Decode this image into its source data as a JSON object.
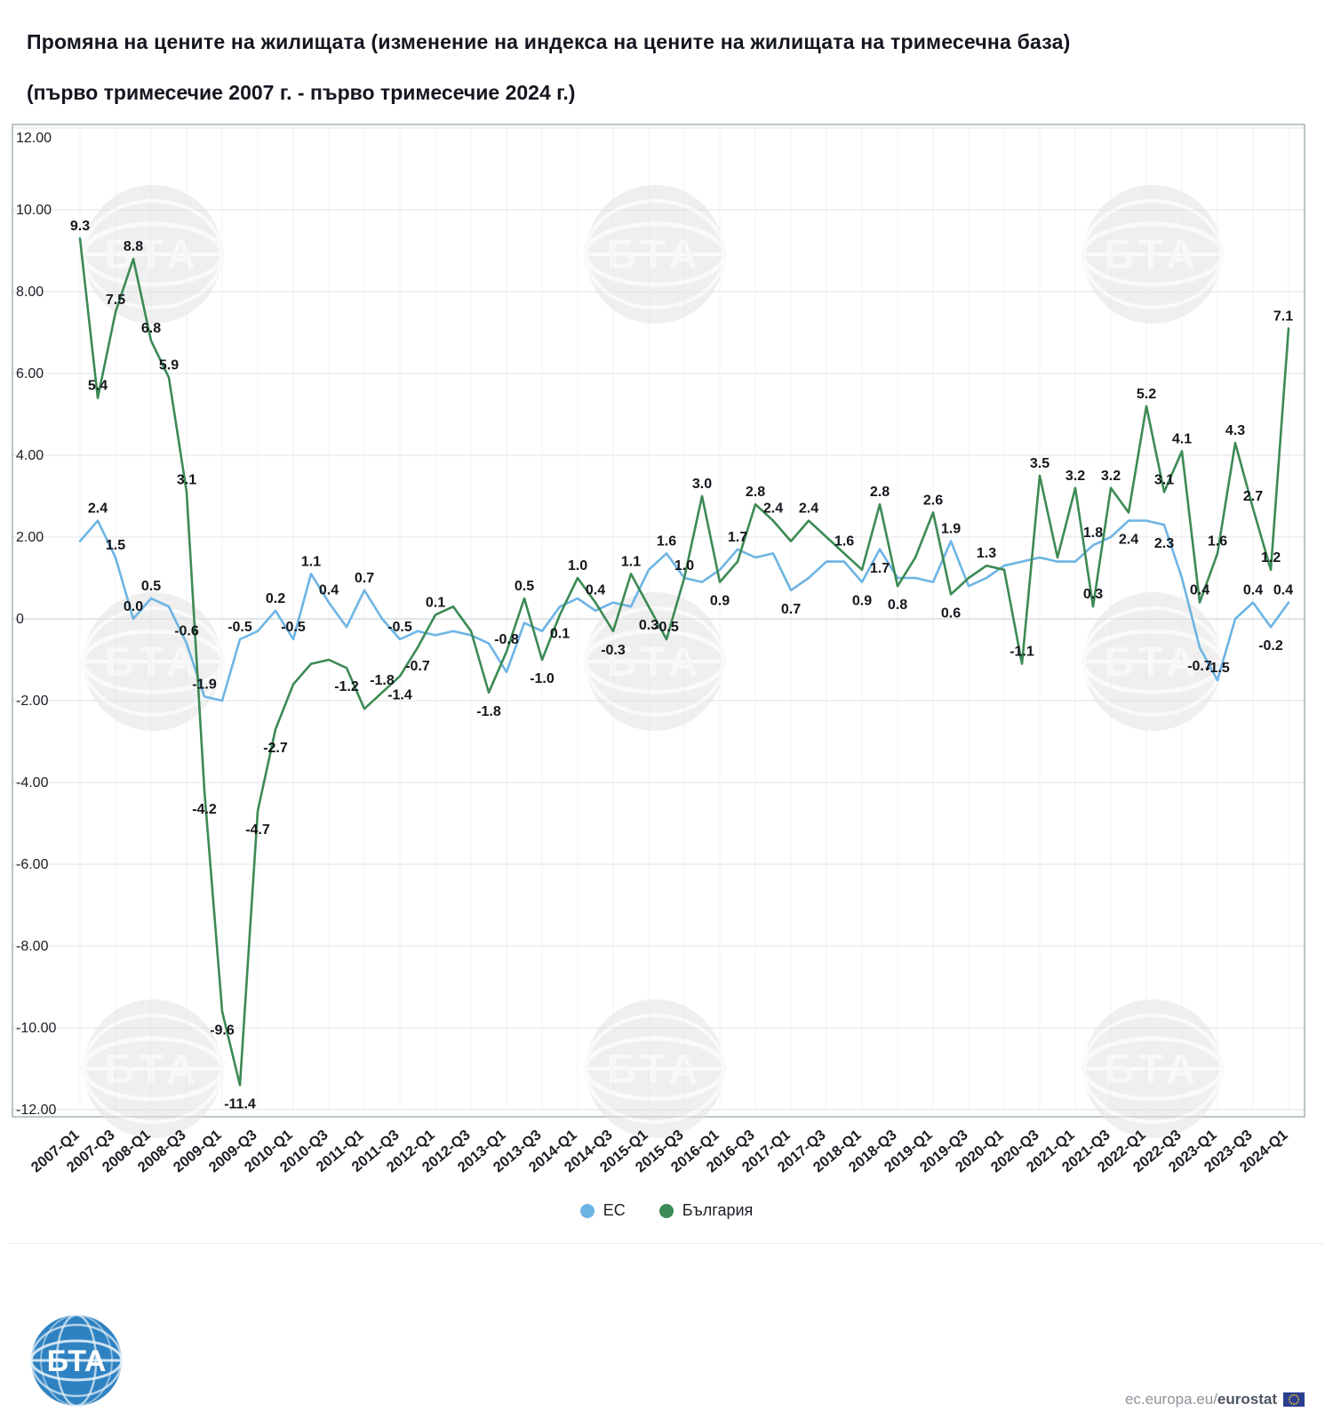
{
  "page": {
    "title": "Промяна на цените на жилищата (изменение на индекса на цените на жилищата на тримесечна база)",
    "subtitle": "(първо тримесечие 2007 г. -  първо тримесечие 2024 г.)"
  },
  "legend": [
    {
      "label": "ЕС",
      "color": "#6db4e4"
    },
    {
      "label": "България",
      "color": "#3c8a55"
    }
  ],
  "footer": {
    "logo_text": "БТА",
    "credit_prefix": "ec.europa.eu/",
    "credit_bold": "eurostat"
  },
  "chart_data": {
    "type": "line",
    "n_points": 69,
    "points_per_tick": 2,
    "x_tick_labels": [
      "2007-Q1",
      "2007-Q3",
      "2008-Q1",
      "2008-Q3",
      "2009-Q1",
      "2009-Q3",
      "2010-Q1",
      "2010-Q3",
      "2011-Q1",
      "2011-Q3",
      "2012-Q1",
      "2012-Q3",
      "2013-Q1",
      "2013-Q3",
      "2014-Q1",
      "2014-Q3",
      "2015-Q1",
      "2015-Q3",
      "2016-Q1",
      "2016-Q3",
      "2017-Q1",
      "2017-Q3",
      "2018-Q1",
      "2018-Q3",
      "2019-Q1",
      "2019-Q3",
      "2020-Q1",
      "2020-Q3",
      "2021-Q1",
      "2021-Q3",
      "2022-Q1",
      "2022-Q3",
      "2023-Q1",
      "2023-Q3",
      "2024-Q1"
    ],
    "ylim": [
      -12,
      12
    ],
    "y_tick_labels": [
      "12.00",
      "10.00",
      "8.00",
      "6.00",
      "4.00",
      "2.00",
      "0",
      "-2.00",
      "-4.00",
      "-6.00",
      "-8.00",
      "-10.00",
      "-12.00"
    ],
    "grid": true,
    "legend_position": "bottom",
    "watermark_text": "БТА",
    "series": [
      {
        "name": "ЕС",
        "color": "#6db4e4",
        "values": [
          1.9,
          2.4,
          1.5,
          0.0,
          0.5,
          0.3,
          -0.6,
          -1.9,
          -2.0,
          -0.5,
          -0.3,
          0.2,
          -0.5,
          1.1,
          0.4,
          -0.2,
          0.7,
          0.0,
          -0.5,
          -0.3,
          -0.4,
          -0.3,
          -0.4,
          -0.6,
          -1.3,
          -0.1,
          -0.3,
          0.3,
          0.5,
          0.2,
          0.4,
          0.3,
          1.2,
          1.6,
          1.0,
          0.9,
          1.2,
          1.7,
          1.5,
          1.6,
          0.7,
          1.0,
          1.4,
          1.4,
          0.9,
          1.7,
          1.0,
          1.0,
          0.9,
          1.9,
          0.8,
          1.0,
          1.3,
          1.4,
          1.5,
          1.4,
          1.4,
          1.8,
          2.0,
          2.4,
          2.4,
          2.3,
          1.0,
          -0.7,
          -1.5,
          0.0,
          0.4,
          -0.2,
          0.4
        ],
        "point_labels": {
          "1": "2.4",
          "2": "1.5",
          "3": "0.0",
          "4": "0.5",
          "6": "-0.6",
          "7": "-1.9",
          "9": "-0.5",
          "11": "0.2",
          "12": "-0.5",
          "13": "1.1",
          "14": "0.4",
          "16": "0.7",
          "18": "-0.5",
          "33": "1.6",
          "37": "1.7",
          "40": "0.7",
          "44": "0.9",
          "45": "1.7",
          "49": "1.9",
          "57": "1.8",
          "59": "2.4",
          "61": "2.3",
          "63": "-0.7",
          "64": "-1.5",
          "66": "0.4",
          "67": "-0.2",
          "68": "0.4"
        }
      },
      {
        "name": "България",
        "color": "#3c8a55",
        "values": [
          9.3,
          5.4,
          7.5,
          8.8,
          6.8,
          5.9,
          3.1,
          -4.2,
          -9.6,
          -11.4,
          -4.7,
          -2.7,
          -1.6,
          -1.1,
          -1.0,
          -1.2,
          -2.2,
          -1.8,
          -1.4,
          -0.7,
          0.1,
          0.3,
          -0.3,
          -1.8,
          -0.8,
          0.5,
          -1.0,
          0.1,
          1.0,
          0.4,
          -0.3,
          1.1,
          0.3,
          -0.5,
          1.0,
          3.0,
          0.9,
          1.4,
          2.8,
          2.4,
          1.9,
          2.4,
          2.0,
          1.6,
          1.2,
          2.8,
          0.8,
          1.5,
          2.6,
          0.6,
          1.0,
          1.3,
          1.2,
          -1.1,
          3.5,
          1.5,
          3.2,
          0.3,
          3.2,
          2.6,
          5.2,
          3.1,
          4.1,
          0.4,
          1.6,
          4.3,
          2.7,
          1.2,
          7.1
        ],
        "point_labels": {
          "0": "9.3",
          "1": "5.4",
          "2": "7.5",
          "3": "8.8",
          "4": "6.8",
          "5": "5.9",
          "6": "3.1",
          "7": "-4.2",
          "8": "-9.6",
          "9": "-11.4",
          "10": "-4.7",
          "11": "-2.7",
          "15": "-1.2",
          "17": "-1.8",
          "18": "-1.4",
          "19": "-0.7",
          "20": "0.1",
          "23": "-1.8",
          "24": "-0.8",
          "25": "0.5",
          "26": "-1.0",
          "27": "0.1",
          "28": "1.0",
          "29": "0.4",
          "30": "-0.3",
          "31": "1.1",
          "32": "0.3",
          "33": "-0.5",
          "34": "1.0",
          "35": "3.0",
          "36": "0.9",
          "38": "2.8",
          "39": "2.4",
          "41": "2.4",
          "43": "1.6",
          "45": "2.8",
          "46": "0.8",
          "48": "2.6",
          "49": "0.6",
          "51": "1.3",
          "53": "-1.1",
          "54": "3.5",
          "56": "3.2",
          "57": "0.3",
          "58": "3.2",
          "60": "5.2",
          "61": "3.1",
          "62": "4.1",
          "63": "0.4",
          "64": "1.6",
          "65": "4.3",
          "66": "2.7",
          "67": "1.2",
          "68": "7.1"
        }
      }
    ]
  }
}
